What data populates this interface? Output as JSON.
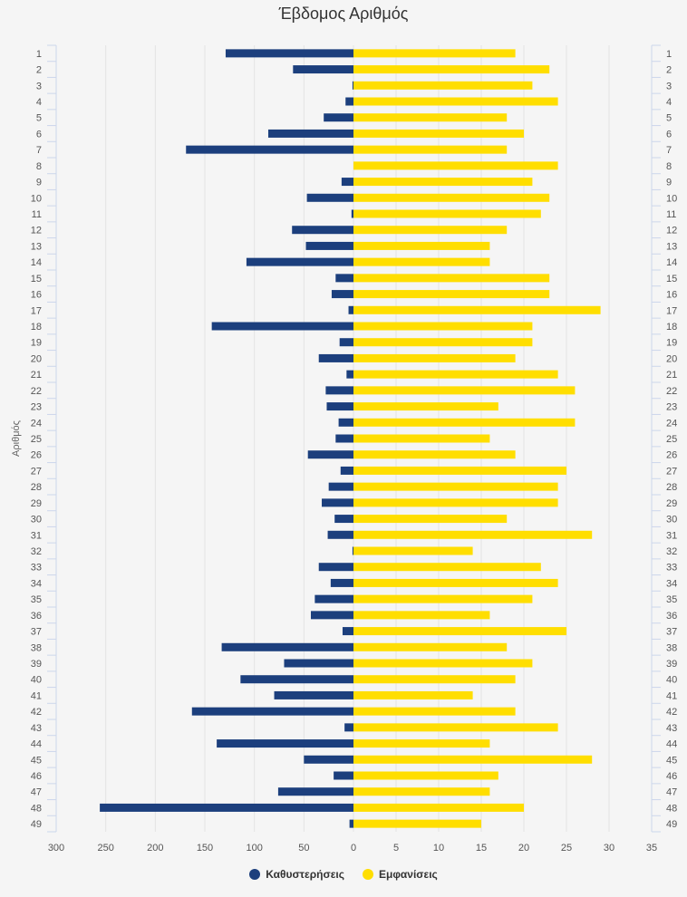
{
  "chart_data": {
    "type": "bar",
    "orientation": "horizontal",
    "layout": "butterfly",
    "title": "Έβδομος Αριθμός",
    "ylabel": "Αριθμός",
    "categories": [
      "1",
      "2",
      "3",
      "4",
      "5",
      "6",
      "7",
      "8",
      "9",
      "10",
      "11",
      "12",
      "13",
      "14",
      "15",
      "16",
      "17",
      "18",
      "19",
      "20",
      "21",
      "22",
      "23",
      "24",
      "25",
      "26",
      "27",
      "28",
      "29",
      "30",
      "31",
      "32",
      "33",
      "34",
      "35",
      "36",
      "37",
      "38",
      "39",
      "40",
      "41",
      "42",
      "43",
      "44",
      "45",
      "46",
      "47",
      "48",
      "49"
    ],
    "series": [
      {
        "name": "Καθυστερήσεις",
        "color": "#1c3f7d",
        "axis": "left",
        "values": [
          129,
          61,
          1,
          8,
          30,
          86,
          169,
          0,
          12,
          47,
          2,
          62,
          48,
          108,
          18,
          22,
          5,
          143,
          14,
          35,
          7,
          28,
          27,
          15,
          18,
          46,
          13,
          25,
          32,
          19,
          26,
          1,
          35,
          23,
          39,
          43,
          11,
          133,
          70,
          114,
          80,
          163,
          9,
          138,
          50,
          20,
          76,
          256,
          4
        ]
      },
      {
        "name": "Εμφανίσεις",
        "color": "#ffde00",
        "axis": "right",
        "values": [
          19,
          23,
          21,
          24,
          18,
          20,
          18,
          24,
          21,
          23,
          22,
          18,
          16,
          16,
          23,
          23,
          29,
          21,
          21,
          19,
          24,
          26,
          17,
          26,
          16,
          19,
          25,
          24,
          24,
          18,
          28,
          14,
          22,
          24,
          21,
          16,
          25,
          18,
          21,
          19,
          14,
          19,
          24,
          16,
          28,
          17,
          16,
          20,
          15
        ]
      }
    ],
    "left_axis": {
      "range": [
        300,
        0
      ],
      "ticks": [
        "300",
        "250",
        "200",
        "150",
        "100",
        "50",
        "0"
      ]
    },
    "right_axis": {
      "range": [
        0,
        35
      ],
      "ticks": [
        "0",
        "5",
        "10",
        "15",
        "20",
        "25",
        "30",
        "35"
      ]
    },
    "grid": true,
    "legend_position": "bottom-center"
  }
}
